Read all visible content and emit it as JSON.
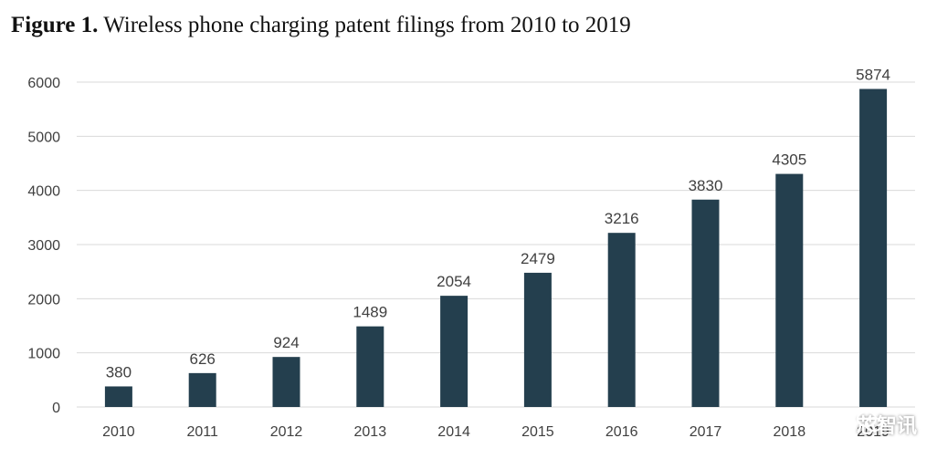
{
  "chart_data": {
    "type": "bar",
    "title_lead": "Figure 1.",
    "title": "Wireless phone charging patent filings from 2010 to 2019",
    "categories": [
      "2010",
      "2011",
      "2012",
      "2013",
      "2014",
      "2015",
      "2016",
      "2017",
      "2018",
      "2019"
    ],
    "values": [
      380,
      626,
      924,
      1489,
      2054,
      2479,
      3216,
      3830,
      4305,
      5874
    ],
    "ylim": [
      0,
      6000
    ],
    "yticks": [
      0,
      1000,
      2000,
      3000,
      4000,
      5000,
      6000
    ],
    "xlabel": "",
    "ylabel": "",
    "grid": true,
    "legend": "none",
    "bar_color": "#243f4e",
    "grid_color": "#d9d9d9"
  },
  "watermark": {
    "icon": "wechat-icon",
    "text": "芯智讯"
  }
}
